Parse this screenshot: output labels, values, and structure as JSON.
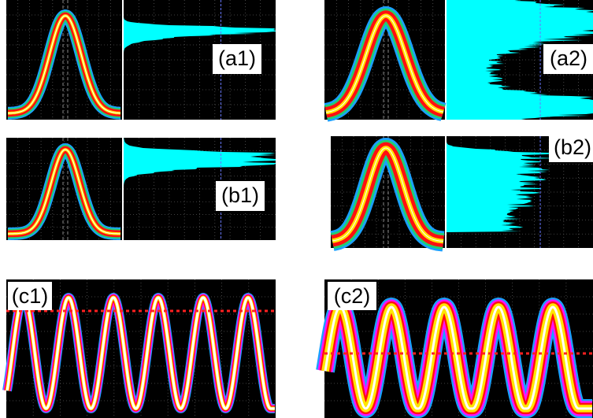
{
  "panels": [
    {
      "label": "(a1)"
    },
    {
      "label": "(a2)"
    },
    {
      "label": "(b1)"
    },
    {
      "label": "(b2)"
    },
    {
      "label": "(c1)"
    },
    {
      "label": "(c2)"
    }
  ]
}
